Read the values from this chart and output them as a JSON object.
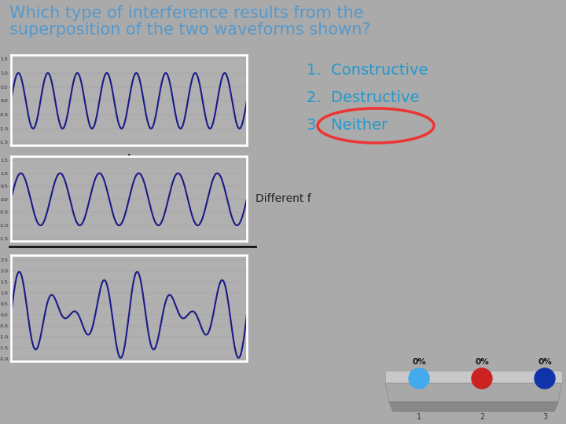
{
  "bg_color": "#aaaaaa",
  "title_line1": "Which type of interference results from the",
  "title_line2": "superposition of the two waveforms shown?",
  "title_color": "#5599cc",
  "title_fontsize": 15,
  "wave1_freq": 8,
  "wave1_amp": 1.0,
  "wave2_freq": 6,
  "wave2_amp": 1.0,
  "wave_color": "#1a1a88",
  "wave_bg": "#b0b0b0",
  "wave_lw": 1.5,
  "answer1": "1.  Constructive",
  "answer2": "2.  Destructive",
  "answer3": "3.  Neither",
  "answer_color": "#2299cc",
  "answer_fontsize": 14,
  "circle_color": "#ee3333",
  "plus_symbol": "+",
  "diff_f_label": "Different f",
  "diff_f_color": "#222222",
  "diff_f_fontsize": 10,
  "pct_label": "0%",
  "pct_color": "#111111",
  "circle1_color": "#44aaee",
  "circle2_color": "#cc2222",
  "circle3_color": "#1133aa",
  "wave1_yticks": [
    -1.5,
    -1,
    -0.5,
    0,
    0.5,
    1,
    1.5
  ],
  "wave2_yticks": [
    -1.5,
    -1,
    -0.5,
    0,
    0.5,
    1,
    1.5
  ],
  "wave3_yticks": [
    -2,
    -1.5,
    -1,
    -0.5,
    0,
    0.5,
    1,
    1.5,
    2,
    2.5
  ]
}
